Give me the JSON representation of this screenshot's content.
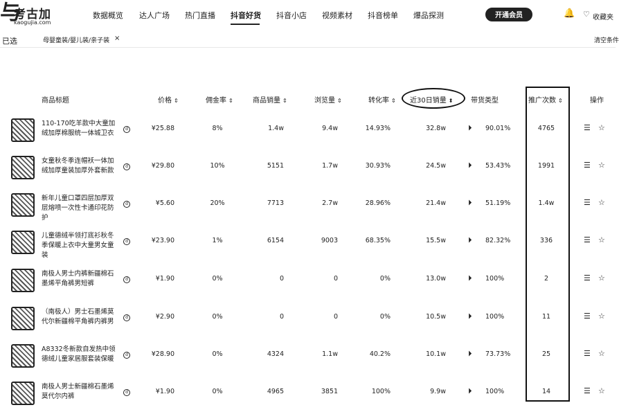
{
  "nav": {
    "logo_mark": "与",
    "logo_text": "考古加",
    "logo_domain": "kaogujia.com",
    "items": [
      "数据概览",
      "达人广场",
      "热门直播",
      "抖音好货",
      "抖音小店",
      "视频素材",
      "抖音榜单",
      "爆品探测"
    ],
    "active_index": 3,
    "vip_label": "开通会员",
    "favorites_label": "收藏夹"
  },
  "filter": {
    "selected_label": "已选",
    "tag": "母婴童装/婴儿装/亲子装",
    "clear_label": "清空条件"
  },
  "table": {
    "headers": {
      "title": "商品标题",
      "price": "价格",
      "commission": "佣金率",
      "sales": "商品销量",
      "views": "浏览量",
      "conversion": "转化率",
      "sales30": "近30日销量",
      "type": "带货类型",
      "promo": "推广次数",
      "ops": "操作"
    },
    "rows": [
      {
        "title": "110-170吃羊款中大童加绒加厚棉服统一体城卫衣",
        "price": "¥25.88",
        "commission": "8%",
        "sales": "1.4w",
        "views": "9.4w",
        "conversion": "14.93%",
        "sales30": "32.8w",
        "type_pct": "90.01%",
        "promo": "4765"
      },
      {
        "title": "女童秋冬季连帽袄一体加绒加厚童装加厚外套新款",
        "price": "¥29.80",
        "commission": "10%",
        "sales": "5151",
        "views": "1.7w",
        "conversion": "30.93%",
        "sales30": "24.5w",
        "type_pct": "53.43%",
        "promo": "1991"
      },
      {
        "title": "新年儿童口罩四层加厚双层熔喷一次性卡通印花防护",
        "price": "¥5.60",
        "commission": "20%",
        "sales": "7713",
        "views": "2.7w",
        "conversion": "28.96%",
        "sales30": "21.4w",
        "type_pct": "51.19%",
        "promo": "1.4w"
      },
      {
        "title": "儿童德绒半领打底衫秋冬季保暖上衣中大童男女童装",
        "price": "¥23.90",
        "commission": "1%",
        "sales": "6154",
        "views": "9003",
        "conversion": "68.35%",
        "sales30": "15.5w",
        "type_pct": "82.32%",
        "promo": "336"
      },
      {
        "title": "南极人男士内裤新疆棉石墨烯平角裤男短裤",
        "price": "¥1.90",
        "commission": "0%",
        "sales": "0",
        "views": "0",
        "conversion": "0%",
        "sales30": "13.0w",
        "type_pct": "100%",
        "promo": "2"
      },
      {
        "title": "（南极人）男士石墨烯莫代尔新疆棉平角裤内裤男",
        "price": "¥2.90",
        "commission": "0%",
        "sales": "0",
        "views": "0",
        "conversion": "0%",
        "sales30": "10.5w",
        "type_pct": "100%",
        "promo": "11"
      },
      {
        "title": "A8332冬新款自发热中领德绒儿童家居服套装保暖",
        "price": "¥28.90",
        "commission": "0%",
        "sales": "4324",
        "views": "1.1w",
        "conversion": "40.2%",
        "sales30": "10.1w",
        "type_pct": "73.73%",
        "promo": "25"
      },
      {
        "title": "南极人男士新疆棉石墨烯莫代尔内裤",
        "price": "¥1.90",
        "commission": "0%",
        "sales": "4965",
        "views": "3851",
        "conversion": "100%",
        "sales30": "9.9w",
        "type_pct": "100%",
        "promo": "14"
      }
    ]
  },
  "icons": {
    "sort": "sort-arrows-icon",
    "bell": "bell-icon",
    "heart": "heart-icon",
    "type": "video-icon",
    "list": "list-icon",
    "star": "star-icon"
  }
}
